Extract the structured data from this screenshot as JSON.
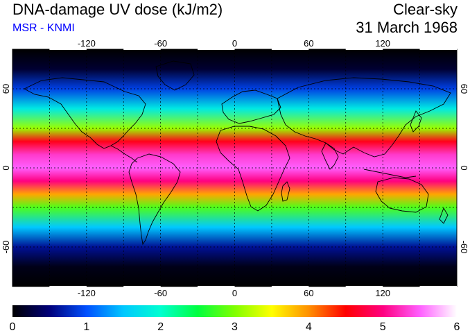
{
  "header": {
    "title": "DNA-damage UV dose (kJ/m2)",
    "source": "MSR - KNMI",
    "condition": "Clear-sky",
    "date": "31 March 1968",
    "source_color": "#0000ff"
  },
  "map": {
    "projection": "equirectangular",
    "lon_range": [
      -180,
      180
    ],
    "lat_range": [
      -90,
      90
    ],
    "grid_lons": [
      -150,
      -120,
      -90,
      -60,
      -30,
      0,
      30,
      60,
      90,
      120,
      150
    ],
    "grid_lats": [
      -60,
      -30,
      0,
      30,
      60
    ],
    "lon_tick_labels": [
      {
        "value": -120,
        "text": "-120"
      },
      {
        "value": -60,
        "text": "-60"
      },
      {
        "value": 0,
        "text": "0"
      },
      {
        "value": 60,
        "text": "60"
      },
      {
        "value": 120,
        "text": "120"
      }
    ],
    "lat_tick_labels": [
      {
        "value": 60,
        "text": "60"
      },
      {
        "value": 0,
        "text": "0"
      },
      {
        "value": -60,
        "text": "-60"
      }
    ],
    "field_profile": [
      {
        "lat": 90,
        "value": 0.0
      },
      {
        "lat": 75,
        "value": 0.2
      },
      {
        "lat": 60,
        "value": 0.9
      },
      {
        "lat": 45,
        "value": 1.8
      },
      {
        "lat": 30,
        "value": 3.1
      },
      {
        "lat": 20,
        "value": 4.6
      },
      {
        "lat": 10,
        "value": 5.3
      },
      {
        "lat": 0,
        "value": 5.5
      },
      {
        "lat": -10,
        "value": 5.0
      },
      {
        "lat": -20,
        "value": 3.9
      },
      {
        "lat": -30,
        "value": 2.8
      },
      {
        "lat": -45,
        "value": 1.5
      },
      {
        "lat": -60,
        "value": 0.6
      },
      {
        "lat": -75,
        "value": 0.1
      },
      {
        "lat": -90,
        "value": 0.0
      }
    ]
  },
  "colorbar": {
    "min": 0,
    "max": 6,
    "tick_labels": [
      "0",
      "1",
      "2",
      "3",
      "4",
      "5",
      "6"
    ],
    "stops": [
      {
        "value": 0.0,
        "color": "#000000"
      },
      {
        "value": 0.5,
        "color": "#00007a"
      },
      {
        "value": 1.0,
        "color": "#0050ff"
      },
      {
        "value": 1.5,
        "color": "#00c8ff"
      },
      {
        "value": 2.0,
        "color": "#00ffd0"
      },
      {
        "value": 2.5,
        "color": "#00ff40"
      },
      {
        "value": 3.0,
        "color": "#80ff00"
      },
      {
        "value": 3.5,
        "color": "#ffff00"
      },
      {
        "value": 4.0,
        "color": "#ff9000"
      },
      {
        "value": 4.5,
        "color": "#ff0000"
      },
      {
        "value": 5.0,
        "color": "#ff0080"
      },
      {
        "value": 5.5,
        "color": "#ff60ff"
      },
      {
        "value": 6.0,
        "color": "#ffffff"
      }
    ]
  }
}
